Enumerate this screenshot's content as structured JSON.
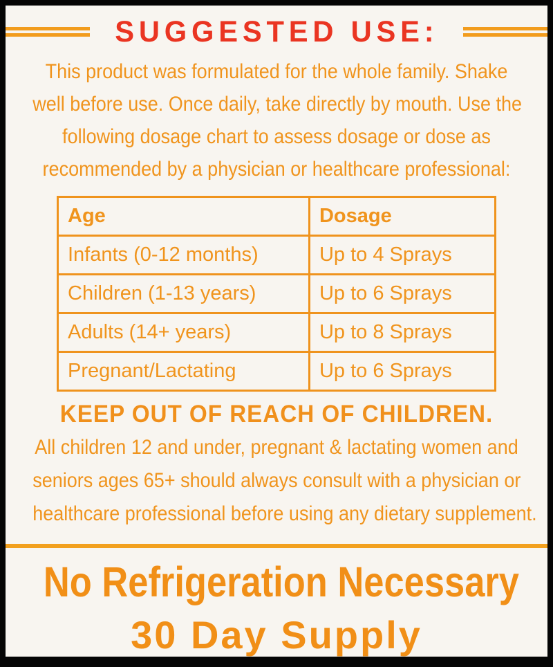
{
  "page": {
    "background": "#f8f5f0",
    "frame_color": "#050505",
    "accent_orange": "#f0941d",
    "accent_red": "#ea3522"
  },
  "header": {
    "title": "SUGGESTED USE:"
  },
  "intro": {
    "lines": [
      "This product was formulated for the whole family. Shake",
      "well before use. Once daily, take directly by mouth. Use the",
      "following dosage chart to assess dosage or dose as",
      "recommended by a physician or healthcare professional:"
    ]
  },
  "dosage_table": {
    "headers": [
      "Age",
      "Dosage"
    ],
    "rows": [
      [
        "Infants (0-12 months)",
        "Up to 4 Sprays"
      ],
      [
        "Children (1-13 years)",
        "Up to 6 Sprays"
      ],
      [
        "Adults (14+ years)",
        "Up to 8 Sprays"
      ],
      [
        "Pregnant/Lactating",
        "Up to 6 Sprays"
      ]
    ]
  },
  "warning": {
    "heading": "KEEP OUT OF REACH OF CHILDREN.",
    "lines": [
      "All children 12 and under, pregnant & lactating women and",
      "seniors ages 65+ should always consult with a physician or",
      "healthcare professional before using any dietary supplement."
    ]
  },
  "footer": {
    "claim": "No Refrigeration Necessary",
    "supply": "30 Day Supply"
  }
}
